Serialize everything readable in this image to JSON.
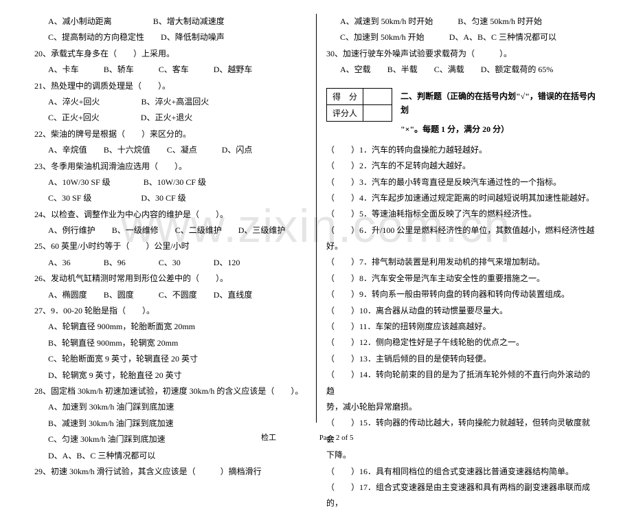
{
  "watermark": "www.zixin.com.cn",
  "footer": {
    "left_label": "检工",
    "page": "Page 2 of 5"
  },
  "left": {
    "l1": {
      "a": "A、减小制动距离",
      "b": "B、增大制动减速度"
    },
    "l2": {
      "a": "C、提高制动的方向稳定性",
      "b": "D、降低制动噪声"
    },
    "q20": "20、承载式车身多在（　　）上采用。",
    "q20o": {
      "a": "A、卡车",
      "b": "B、轿车",
      "c": "C、客车",
      "d": "D、越野车"
    },
    "q21": "21、热处理中的调质处理是（　　）。",
    "q21a": {
      "a": "A、淬火+回火",
      "b": "B、淬火+高温回火"
    },
    "q21b": {
      "a": "C、正火+回火",
      "b": "D、正火+退火"
    },
    "q22": "22、柴油的牌号是根据（　　）来区分的。",
    "q22o": {
      "a": "A、辛烷值",
      "b": "B、十六烷值",
      "c": "C、凝点",
      "d": "D、闪点"
    },
    "q23": "23、冬季用柴油机润滑油应选用（　　）。",
    "q23a": {
      "a": "A、10W/30 SF 级",
      "b": "B、10W/30 CF 级"
    },
    "q23b": {
      "a": "C、30 SF 级",
      "b": "D、30 CF 级"
    },
    "q24": "24、以检查、调整作业为中心内容的维护是（　　）。",
    "q24o": {
      "a": "A、例行维护",
      "b": "B、一级维修",
      "c": "C、二级维护",
      "d": "D、三级维护"
    },
    "q25": "25、60 英里/小时约等于（　　）公里/小时",
    "q25o": {
      "a": "A、36",
      "b": "B、96",
      "c": "C、30",
      "d": "D、120"
    },
    "q26": "26、发动机气缸精测时常用到形位公差中的（　　）。",
    "q26o": {
      "a": "A、椭圆度",
      "b": "B、圆度",
      "c": "C、不圆度",
      "d": "D、直线度"
    },
    "q27": "27、9．00-20 轮胎是指（　　）。",
    "q27a": "A、轮辋直径 900mm，轮胎断面宽 20mm",
    "q27b": "B、轮辋直径 900mm，轮辋宽 20mm",
    "q27c": "C、轮胎断面宽 9 英寸，轮辋直径 20 英寸",
    "q27d": "D、轮辋宽 9 英寸，轮胎直径 20 英寸",
    "q28": "28、固定档 30km/h 初速加速试验，初速度 30km/h 的含义应该是（　　）。",
    "q28a": "A、加速到 30km/h 油门踩到底加速",
    "q28b": "B、减速到 30km/h 油门踩到底加速",
    "q28c": "C、匀速 30km/h 油门踩到底加速",
    "q28d": "D、A、B、C 三种情况都可以",
    "q29": "29、初速 30km/h 滑行试验，其含义应该是（　　　）摘档滑行"
  },
  "right": {
    "r1": {
      "a": "A、减速到 50km/h 时开始",
      "b": "B、匀速 50km/h 时开始"
    },
    "r2": {
      "a": "C、加速到 50km/h 开始",
      "b": "D、A、B、C 三种情况都可以"
    },
    "q30": "30、加速行驶车外噪声试验要求载荷为（　　　）。",
    "q30o": {
      "a": "A、空载",
      "b": "B、半载",
      "c": "C、满载",
      "d": "D、额定载荷的 65%"
    },
    "score": {
      "r1": "得　分",
      "r2": "评分人"
    },
    "section2_a": "二、判断题（正确的在括号内划\"√\"，错误的在括号内划",
    "section2_b": "\"×\"。每题 1 分，满分 20 分）",
    "j1": "（　　）1．汽车的转向盘操舵力越轻越好。",
    "j2": "（　　）2．汽车的不足转向越大越好。",
    "j3": "（　　）3．汽车的最小转弯直径是反映汽车通过性的一个指标。",
    "j4": "（　　）4．汽车起步加速通过规定距离的时间越短说明其加速性能越好。",
    "j5": "（　　）5．等速油耗指标全面反映了汽车的燃料经济性。",
    "j6a": "（　　）6．升/100 公里是燃料经济性的单位，其数值越小，燃料经济性越",
    "j6b": "好。",
    "j7": "（　　）7．排气制动装置是利用发动机的排气来增加制动。",
    "j8": "（　　）8．汽车安全带是汽车主动安全性的重要措施之一。",
    "j9": "（　　）9．转向系一般由带转向盘的转向器和转向传动装置组成。",
    "j10": "（　　）10．离合器从动盘的转动惯量要尽量大。",
    "j11": "（　　）11．车架的扭转刚度应该越高越好。",
    "j12": "（　　）12．侧向稳定性好是子午线轮胎的优点之一。",
    "j13": "（　　）13．主销后倾的目的是使转向轻便。",
    "j14a": "（　　）14．转向轮前束的目的是为了抵消车轮外倾的不直行向外滚动的趋",
    "j14b": "势，减小轮胎异常磨损。",
    "j15a": "（　　）15．转向器的传动比越大，转向操舵力就越轻，但转向灵敏度就会",
    "j15b": "下降。",
    "j16": "（　　）16．具有相同档位的组合式变速器比普通变速器结构简单。",
    "j17": "（　　）17．组合式变速器是由主变速器和具有两档的副变速器串联而成的，"
  }
}
